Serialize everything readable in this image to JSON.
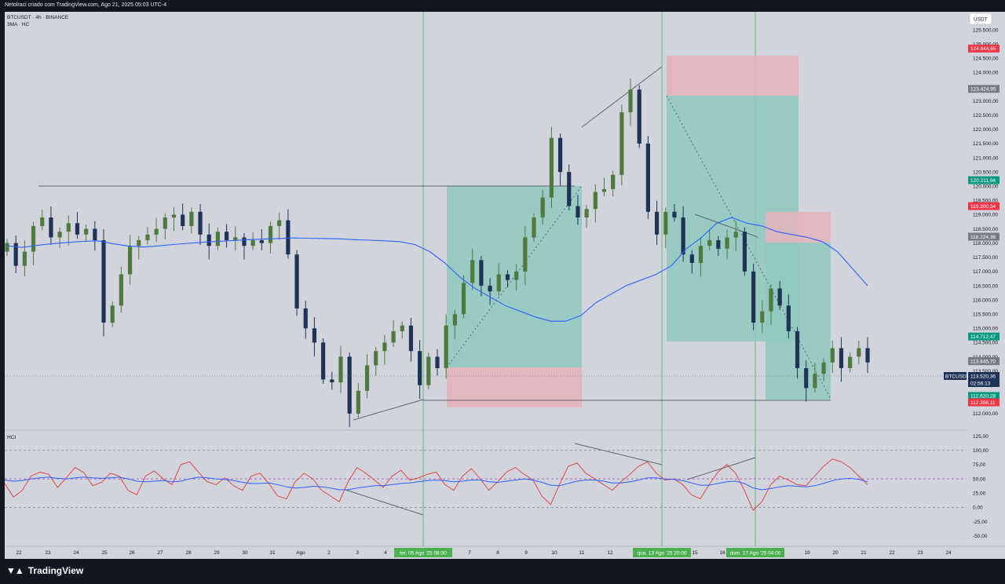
{
  "header": {
    "line1": "Netolraci criado com TradingView.com, Ago 21, 2025 05:03 UTC-4",
    "symbol": "BTCUSDT · 4h · BINANCE",
    "indicator": "3MA · HC"
  },
  "currency_label": "USDT",
  "indicator_label": "HCI",
  "brand": "TradingView",
  "colors": {
    "background": "#d1d4dc",
    "bull": "#4f7a3e",
    "bear": "#1f3356",
    "ma": "#2962ff",
    "teal_zone": "#8fc9bf",
    "red_zone": "#e3b4bc",
    "vline": "#4caf50"
  },
  "chart_data": [
    {
      "type": "candlestick",
      "symbol": "BTCUSDT",
      "timeframe": "4h",
      "exchange": "BINANCE",
      "x_ticks": [
        "22",
        "23",
        "24",
        "25",
        "26",
        "27",
        "28",
        "29",
        "30",
        "31",
        "Ago",
        "2",
        "3",
        "4",
        "7",
        "8",
        "9",
        "10",
        "11",
        "12",
        "15",
        "16",
        "19",
        "20",
        "21",
        "22",
        "23",
        "24"
      ],
      "y_ticks": [
        "125.500,00",
        "125.000,00",
        "124.500,00",
        "124.000,00",
        "123.500,00",
        "123.000,00",
        "122.500,00",
        "122.000,00",
        "121.500,00",
        "121.000,00",
        "120.500,00",
        "120.000,00",
        "119.500,00",
        "119.000,00",
        "118.500,00",
        "118.000,00",
        "117.500,00",
        "117.000,00",
        "116.500,00",
        "116.000,00",
        "115.500,00",
        "115.000,00",
        "114.500,00",
        "114.000,00",
        "113.500,00",
        "113.000,00",
        "112.500,00",
        "112.000,00"
      ],
      "ylim": [
        111500,
        126000
      ],
      "price_labels": [
        {
          "value": "124.844,65",
          "kind": "red"
        },
        {
          "value": "123.424,95",
          "kind": "gray"
        },
        {
          "value": "120.211,94",
          "kind": "green"
        },
        {
          "value": "119.300,34",
          "kind": "red"
        },
        {
          "value": "118.224,36",
          "kind": "gray"
        },
        {
          "value": "114.712,47",
          "kind": "green"
        },
        {
          "value": "113.845,70",
          "kind": "gray"
        },
        {
          "value": "112.620,28",
          "kind": "green"
        },
        {
          "value": "112.396,11",
          "kind": "red"
        }
      ],
      "current_price": {
        "symbol": "BTCUSDT",
        "price": "113.520,36",
        "countdown": "02:56:13"
      },
      "date_labels": [
        "ter. 05 Ago '25  08:00",
        "qua. 13 Ago '25  20:00",
        "dom. 17 Ago '25  04:00"
      ],
      "close_path": [
        118000,
        117200,
        117700,
        118600,
        118900,
        118200,
        118400,
        118700,
        118300,
        118500,
        118100,
        115200,
        115800,
        116900,
        117900,
        118100,
        118300,
        118500,
        118900,
        119000,
        118600,
        119100,
        118300,
        117900,
        118400,
        118100,
        118200,
        117900,
        118100,
        118000,
        118600,
        118800,
        117600,
        115700,
        115000,
        114500,
        113200,
        113100,
        114000,
        112000,
        112800,
        113700,
        114200,
        114500,
        114900,
        115100,
        114200,
        113000,
        114000,
        113600,
        115100,
        115500,
        116600,
        117400,
        116500,
        116300,
        116900,
        116700,
        117000,
        118200,
        118900,
        119600,
        121700,
        120500,
        119300,
        118900,
        119200,
        119800,
        119900,
        120400,
        122600,
        123400,
        121500,
        119100,
        118300,
        119100,
        118900,
        117600,
        117300,
        117900,
        118100,
        117800,
        118200,
        118400,
        117000,
        115200,
        115600,
        116400,
        115800,
        114900,
        113600,
        112900,
        113400,
        113800,
        114300,
        113600,
        114000,
        114300,
        113800
      ],
      "ma_path": [
        117900,
        117850,
        117920,
        117980,
        118020,
        118060,
        118080,
        117980,
        117900,
        117860,
        117900,
        117950,
        117990,
        118030,
        118060,
        118090,
        118120,
        118140,
        118160,
        118180,
        118170,
        118160,
        118150,
        118120,
        118100,
        118080,
        118050,
        117950,
        117700,
        117300,
        116800,
        116400,
        116100,
        115800,
        115600,
        115400,
        115250,
        115250,
        115450,
        115900,
        116200,
        116500,
        116700,
        116900,
        117200,
        117800,
        118200,
        118700,
        118900,
        118700,
        118600,
        118400,
        118300,
        118200,
        118050,
        117700,
        117100,
        116500
      ]
    },
    {
      "type": "line",
      "name": "HCI",
      "y_ticks": [
        "125,00",
        "100,00",
        "75,00",
        "50,00",
        "25,00",
        "0,00",
        "-25,00",
        "-50,00"
      ],
      "ylim": [
        -60,
        130
      ],
      "levels": [
        100,
        50,
        0
      ],
      "oscillator": [
        42,
        18,
        30,
        55,
        62,
        58,
        35,
        52,
        70,
        61,
        38,
        44,
        60,
        55,
        30,
        22,
        55,
        64,
        50,
        40,
        75,
        80,
        62,
        45,
        40,
        52,
        38,
        30,
        55,
        60,
        42,
        20,
        15,
        45,
        60,
        50,
        30,
        20,
        10,
        45,
        70,
        60,
        48,
        35,
        55,
        65,
        48,
        52,
        58,
        62,
        40,
        30,
        55,
        68,
        50,
        30,
        45,
        62,
        70,
        58,
        48,
        20,
        5,
        40,
        72,
        78,
        60,
        50,
        40,
        30,
        45,
        58,
        72,
        80,
        60,
        48,
        50,
        40,
        22,
        15,
        40,
        62,
        75,
        60,
        30,
        -5,
        10,
        40,
        55,
        48,
        40,
        38,
        55,
        72,
        85,
        80,
        70,
        55,
        40
      ],
      "signal": [
        48,
        46,
        47,
        50,
        52,
        53,
        51,
        50,
        52,
        53,
        52,
        51,
        52,
        53,
        50,
        46,
        45,
        46,
        47,
        45,
        46,
        50,
        53,
        52,
        50,
        49,
        47,
        44,
        42,
        42,
        43,
        40,
        36,
        34,
        35,
        37,
        36,
        34,
        31,
        31,
        34,
        36,
        38,
        38,
        40,
        42,
        43,
        45,
        47,
        48,
        47,
        45,
        46,
        48,
        48,
        45,
        44,
        46,
        48,
        50,
        48,
        44,
        39,
        38,
        42,
        46,
        48,
        48,
        46,
        43,
        43,
        45,
        48,
        52,
        52,
        50,
        49,
        47,
        43,
        39,
        39,
        42,
        45,
        46,
        42,
        34,
        31,
        33,
        36,
        38,
        37,
        36,
        38,
        42,
        47,
        50,
        51,
        49,
        45
      ]
    }
  ]
}
